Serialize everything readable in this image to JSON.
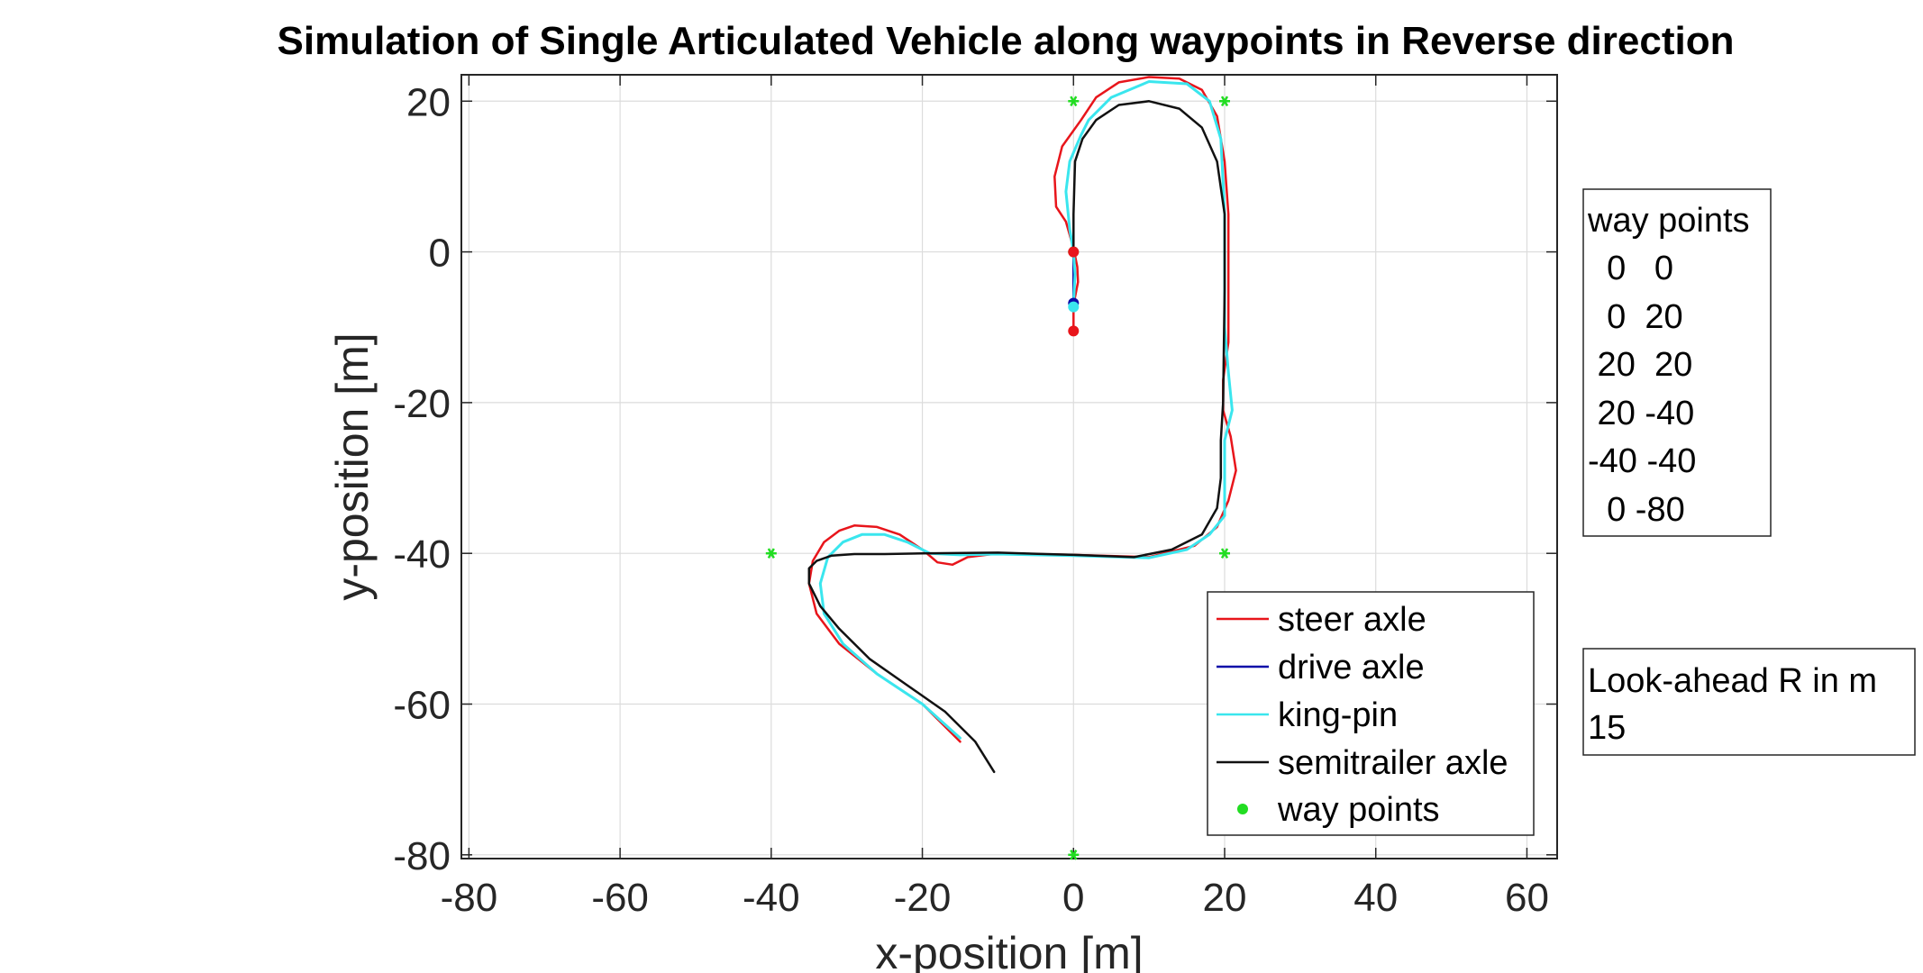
{
  "chart_data": {
    "type": "line",
    "title": "Simulation of Single Articulated Vehicle along waypoints in Reverse direction",
    "xlabel": "x-position [m]",
    "ylabel": "y-position [m]",
    "xlim": [
      -81,
      64
    ],
    "ylim": [
      -80.5,
      23.5
    ],
    "xticks": [
      -80,
      -60,
      -40,
      -20,
      0,
      20,
      40,
      60
    ],
    "yticks": [
      -80,
      -60,
      -40,
      -20,
      0,
      20
    ],
    "grid": true,
    "legend_position": "bottom-right",
    "colors": {
      "steer": "#e8151b",
      "drive": "#0a0aa8",
      "kingpin": "#3ae6ee",
      "semitrailer": "#111111",
      "waypoints": "#22dd22"
    },
    "series": [
      {
        "name": "steer axle",
        "color": "#e8151b",
        "x": [
          -15,
          -20,
          -26,
          -31,
          -34,
          -35,
          -34.5,
          -33,
          -31,
          -29,
          -26,
          -23,
          -20,
          -18,
          -16,
          -14,
          -10,
          0,
          10,
          16,
          19,
          20.5,
          21.5,
          20.8,
          19.8,
          19.8,
          20.5,
          20.5,
          20,
          19,
          17,
          14,
          10,
          6,
          3,
          1,
          -1.5,
          -2.5,
          -2.3,
          -1,
          0,
          0.5,
          0.6,
          0.3,
          0,
          0
        ],
        "y": [
          -65,
          -60,
          -56,
          -52,
          -48,
          -44,
          -41,
          -38.5,
          -37,
          -36.3,
          -36.5,
          -37.5,
          -39.5,
          -41.2,
          -41.5,
          -40.5,
          -40,
          -40.2,
          -40.5,
          -39,
          -36.5,
          -33,
          -29,
          -24.5,
          -21,
          -17,
          -12,
          5,
          12,
          18,
          21.5,
          23,
          23.2,
          22.5,
          20.5,
          17.5,
          14,
          10,
          6,
          4,
          0.5,
          -2,
          -4,
          -5.5,
          -7,
          -10.5
        ]
      },
      {
        "name": "drive axle",
        "color": "#0a0aa8",
        "x": [
          0,
          0,
          0,
          0
        ],
        "y": [
          0,
          -3,
          -6,
          -7
        ]
      },
      {
        "name": "king-pin",
        "color": "#3ae6ee",
        "x": [
          -15,
          -20,
          -26,
          -30.5,
          -33,
          -33.5,
          -32.5,
          -30.5,
          -28,
          -25,
          -22,
          -19,
          -15,
          -10,
          0,
          10,
          15,
          18,
          20,
          20,
          20,
          20,
          21,
          20.5,
          20,
          20,
          19.5,
          18,
          15,
          10,
          5,
          2,
          1,
          -0.5,
          -1,
          -0.5,
          0,
          0.2,
          0
        ],
        "y": [
          -64.5,
          -60,
          -56,
          -52,
          -48,
          -44,
          -40.5,
          -38.5,
          -37.5,
          -37.5,
          -38.5,
          -40,
          -40.2,
          -40.1,
          -40.3,
          -40.6,
          -39.5,
          -37.5,
          -35,
          -32,
          -28,
          -25,
          -21,
          -16,
          -10,
          5,
          15,
          20,
          22.3,
          22.6,
          20.5,
          17.5,
          15.5,
          12,
          8,
          3,
          0,
          -3,
          -7
        ]
      },
      {
        "name": "semitrailer axle",
        "color": "#111111",
        "x": [
          -10.5,
          -13,
          -17,
          -22,
          -27,
          -31,
          -33.5,
          -35,
          -35,
          -34,
          -32,
          -29,
          -25,
          -20,
          -10,
          0,
          8,
          13,
          17,
          19,
          19.5,
          19.5,
          19.8,
          20,
          20,
          19,
          17,
          14,
          10,
          6,
          3,
          1.2,
          0.2,
          0,
          0
        ],
        "y": [
          -69,
          -65,
          -61,
          -57.5,
          -54,
          -50,
          -47,
          -44,
          -42,
          -41,
          -40.3,
          -40.1,
          -40.1,
          -40,
          -39.9,
          -40.2,
          -40.5,
          -39.5,
          -37.5,
          -34,
          -30,
          -25,
          -20,
          -5,
          5,
          12,
          16.5,
          19,
          20,
          19.5,
          17.5,
          15,
          12,
          5,
          0
        ]
      }
    ],
    "waypoints": {
      "name": "way points",
      "color": "#22dd22",
      "x": [
        0,
        0,
        20,
        20,
        -40,
        0
      ],
      "y": [
        0,
        20,
        20,
        -40,
        -40,
        -80
      ]
    },
    "markers": [
      {
        "x": 0,
        "y": 0,
        "color": "#e8151b"
      },
      {
        "x": 0,
        "y": -10.5,
        "color": "#e8151b"
      },
      {
        "x": 0,
        "y": -6.8,
        "color": "#0a0aa8"
      },
      {
        "x": 0,
        "y": -7.3,
        "color": "#3ae6ee"
      }
    ]
  },
  "waypoint_box": {
    "header": "way points",
    "rows": [
      "  0   0",
      "  0  20",
      " 20  20",
      " 20 -40",
      "-40 -40",
      "  0 -80"
    ]
  },
  "lookahead_box": {
    "label": "Look-ahead R in m",
    "value": "15"
  }
}
